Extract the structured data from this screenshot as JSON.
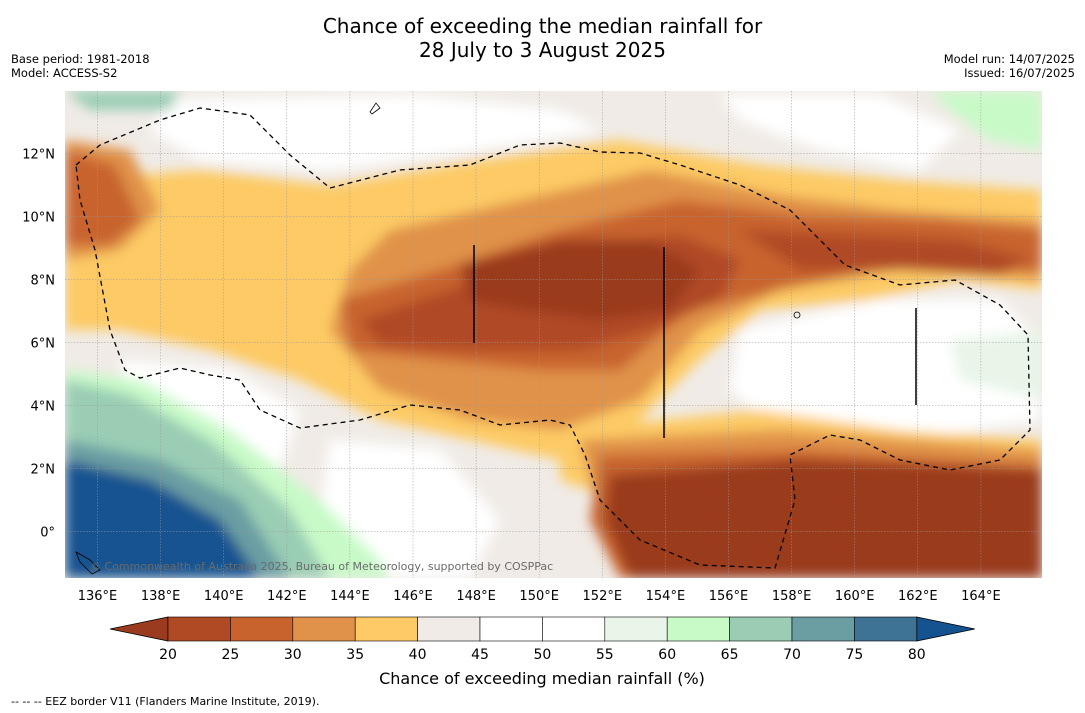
{
  "header": {
    "title_line1": "Chance of exceeding the median rainfall for",
    "title_line2": "28 July to 3 August 2025",
    "base_period": "Base period: 1981-2018",
    "model": "Model: ACCESS-S2",
    "model_run": "Model run: 14/07/2025",
    "issued": "Issued: 16/07/2025"
  },
  "map": {
    "lon_ticks": [
      "136°E",
      "138°E",
      "140°E",
      "142°E",
      "144°E",
      "146°E",
      "148°E",
      "150°E",
      "152°E",
      "154°E",
      "156°E",
      "158°E",
      "160°E",
      "162°E",
      "164°E"
    ],
    "lat_ticks": [
      "12°N",
      "10°N",
      "8°N",
      "6°N",
      "4°N",
      "2°N",
      "0°"
    ],
    "copyright": "© Commonwealth of Australia 2025, Bureau of Meteorology, supported by COSPPac"
  },
  "colorbar": {
    "labels": [
      "20",
      "25",
      "30",
      "35",
      "40",
      "45",
      "50",
      "55",
      "60",
      "65",
      "70",
      "75",
      "80"
    ],
    "colors": [
      "#9a3a1f",
      "#b04a25",
      "#c8632e",
      "#e0924a",
      "#fdca65",
      "#f0ebe6",
      "#ffffff",
      "#ffffff",
      "#e8f5e8",
      "#c8fac8",
      "#9acdb4",
      "#6b9ea3",
      "#3f7395",
      "#145390"
    ],
    "label": "Chance of exceeding median rainfall (%)"
  },
  "footer": {
    "note": "-- -- -- EEZ border V11 (Flanders Marine Institute, 2019)."
  }
}
